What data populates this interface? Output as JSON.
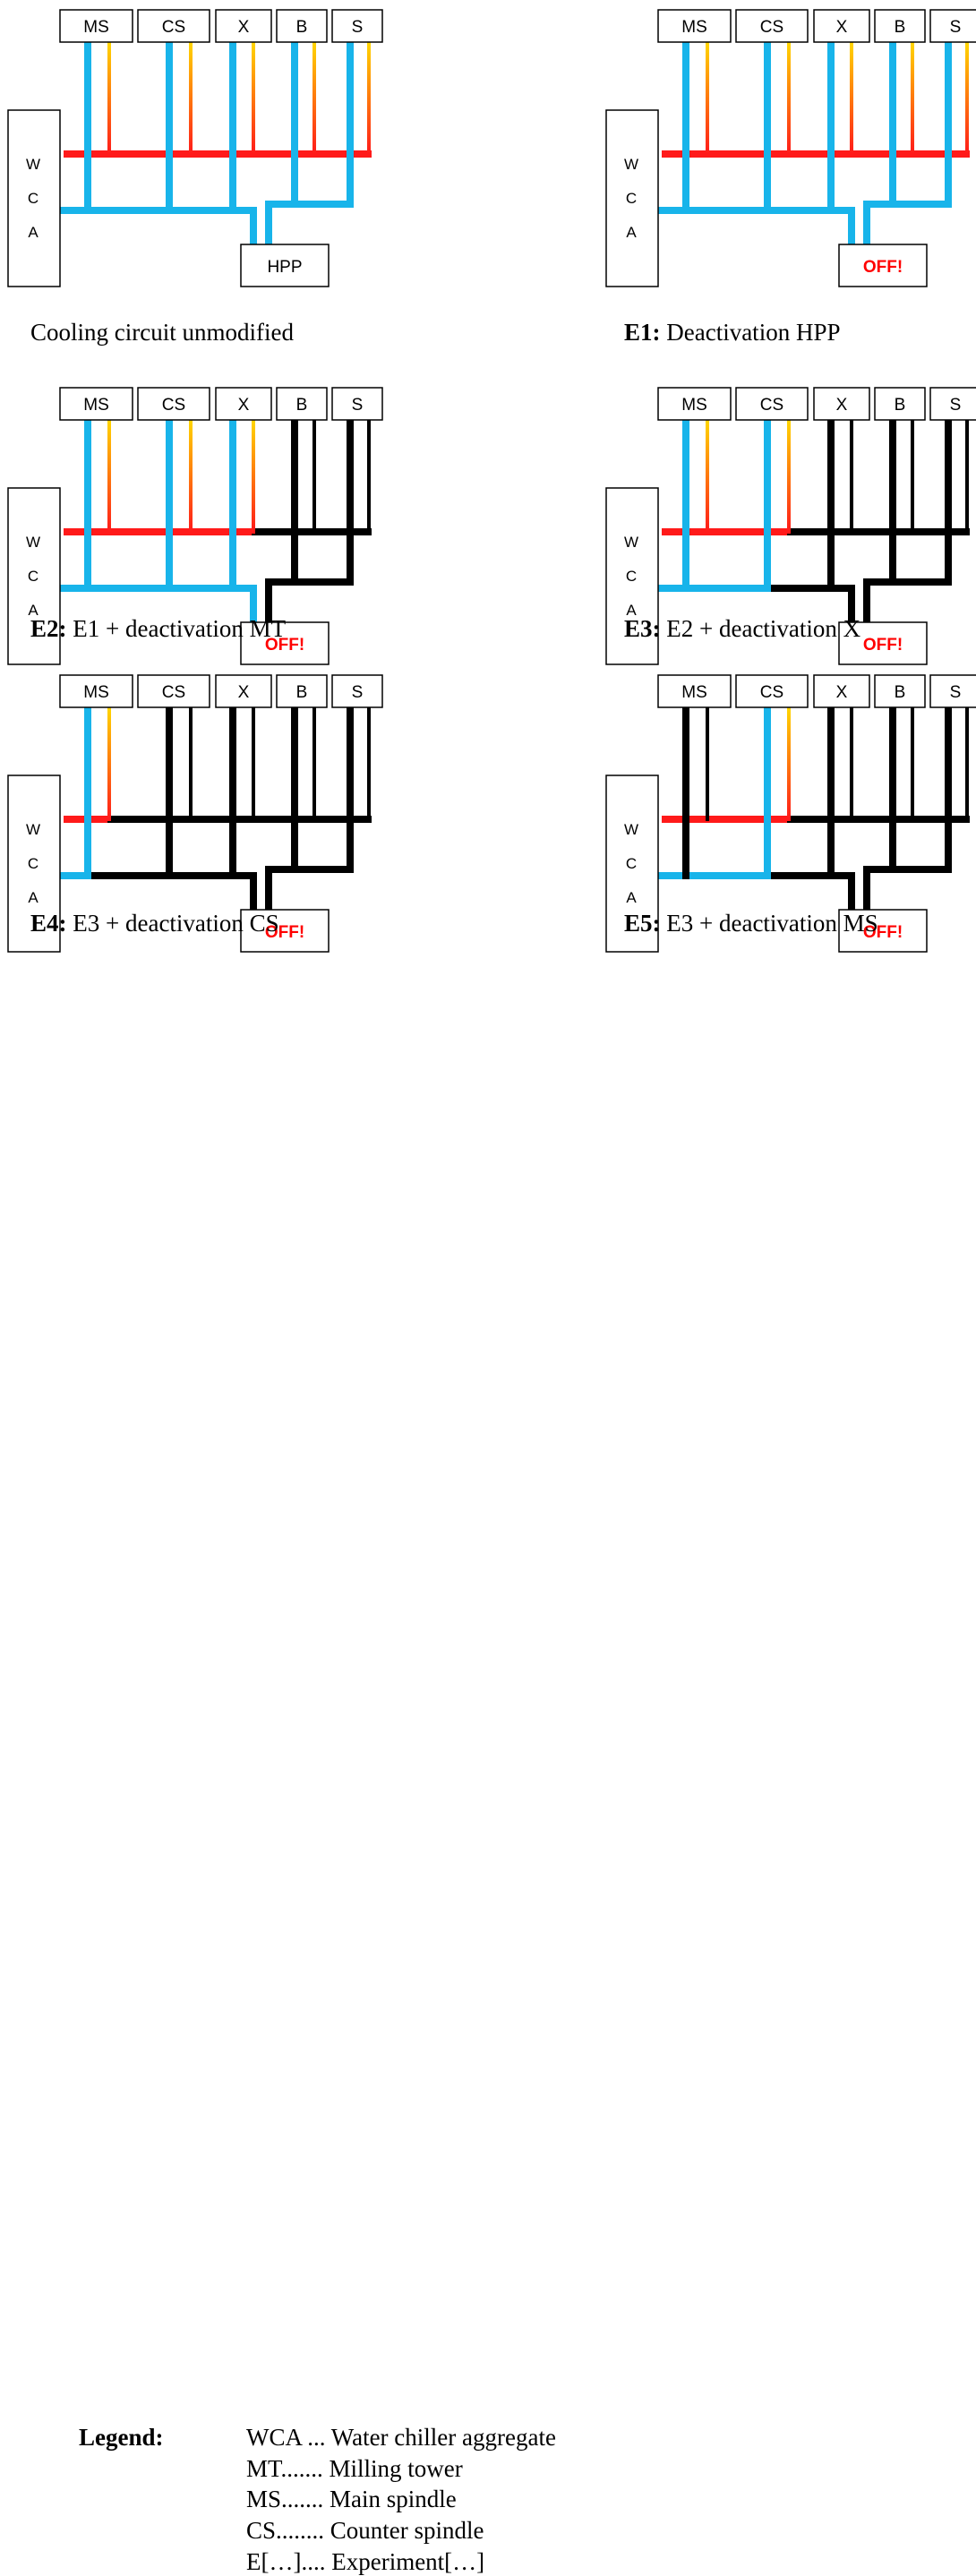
{
  "colors": {
    "feed": "#18b4ea",
    "return": "#ff1a1a",
    "return_branch_top": "#ffd700",
    "off_text": "#ff0000",
    "off_pipe": "#000000"
  },
  "component_labels": [
    "MS",
    "CS",
    "X",
    "B",
    "S"
  ],
  "chiller_letters": [
    "W",
    "C",
    "A"
  ],
  "pump_label": "HPP",
  "off_label": "OFF!",
  "panels": [
    {
      "id": "baseline",
      "caption_bold": "",
      "caption_text": "Cooling circuit unmodified",
      "active": [
        true,
        true,
        true,
        true,
        true
      ],
      "pump_on": true
    },
    {
      "id": "e1",
      "caption_bold": "E1:",
      "caption_text": " Deactivation HPP",
      "active": [
        true,
        true,
        true,
        true,
        true
      ],
      "pump_on": false
    },
    {
      "id": "e2",
      "caption_bold": "E2:",
      "caption_text": " E1 + deactivation MT",
      "active": [
        true,
        true,
        true,
        false,
        false
      ],
      "pump_on": false
    },
    {
      "id": "e3",
      "caption_bold": "E3:",
      "caption_text": " E2 + deactivation X",
      "active": [
        true,
        true,
        false,
        false,
        false
      ],
      "pump_on": false
    },
    {
      "id": "e4",
      "caption_bold": "E4:",
      "caption_text": " E3 + deactivation CS",
      "active": [
        true,
        false,
        false,
        false,
        false
      ],
      "pump_on": false
    },
    {
      "id": "e5",
      "caption_bold": "E5:",
      "caption_text": " E3 + deactivation MS",
      "active": [
        false,
        true,
        false,
        false,
        false
      ],
      "pump_on": false
    }
  ],
  "legend": {
    "title": "Legend:",
    "entries": [
      "WCA ... Water chiller aggregate",
      "MT....... Milling tower",
      "MS....... Main spindle",
      "CS........ Counter spindle",
      "E[…].... Experiment[…]"
    ]
  }
}
